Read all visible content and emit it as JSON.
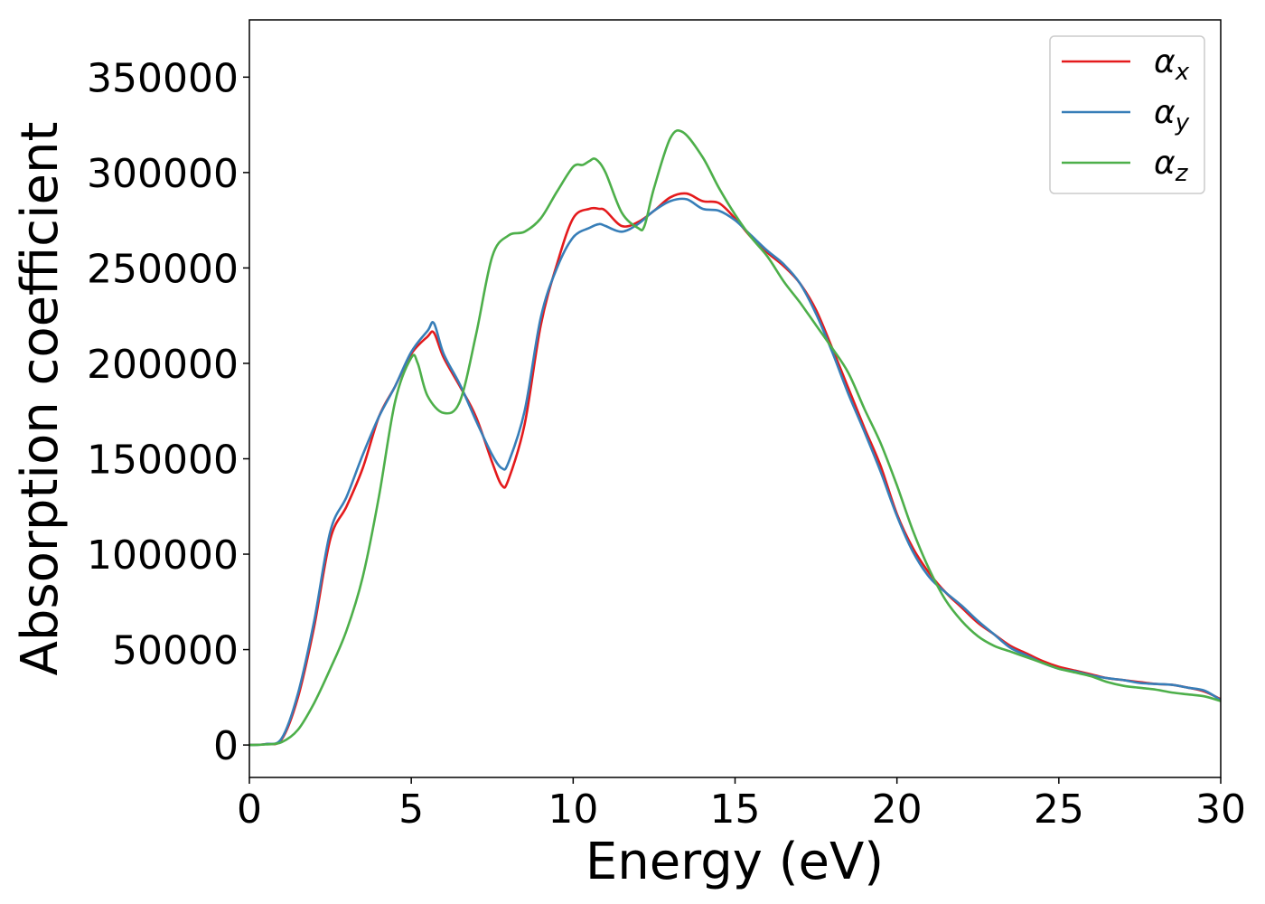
{
  "chart_data": {
    "type": "line",
    "title": "",
    "xlabel": "Energy (eV)",
    "ylabel": "Absorption coefficient",
    "xlim": [
      0,
      30
    ],
    "ylim": [
      -17000,
      380000
    ],
    "xticks": [
      0,
      5,
      10,
      15,
      20,
      25,
      30
    ],
    "xtick_labels": [
      "0",
      "5",
      "10",
      "15",
      "20",
      "25",
      "30"
    ],
    "yticks": [
      0,
      50000,
      100000,
      150000,
      200000,
      250000,
      300000,
      350000
    ],
    "ytick_labels": [
      "0",
      "50000",
      "100000",
      "150000",
      "200000",
      "250000",
      "300000",
      "350000"
    ],
    "grid": false,
    "legend_position": "top-right",
    "series": [
      {
        "name": "α_x",
        "label_main": "α",
        "label_sub": "x",
        "color": "#e41a1c",
        "x": [
          0,
          0.5,
          1.0,
          1.5,
          2.0,
          2.5,
          3.0,
          3.5,
          4.0,
          4.5,
          5.0,
          5.5,
          5.7,
          6.0,
          6.5,
          7.0,
          7.5,
          7.8,
          8.0,
          8.5,
          9.0,
          9.5,
          10.0,
          10.5,
          10.8,
          11.0,
          11.5,
          12.0,
          12.5,
          13.0,
          13.5,
          14.0,
          14.5,
          15.0,
          15.5,
          16.0,
          16.5,
          17.0,
          17.5,
          18.0,
          18.5,
          19.0,
          19.5,
          20.0,
          20.5,
          21.0,
          21.5,
          22.0,
          22.5,
          23.0,
          23.5,
          24.0,
          24.5,
          25.0,
          25.5,
          26.0,
          26.5,
          27.0,
          27.5,
          28.0,
          28.5,
          29.0,
          29.5,
          30.0
        ],
        "y": [
          0,
          500,
          3000,
          25000,
          62000,
          108000,
          125000,
          145000,
          172000,
          188000,
          205000,
          214000,
          216000,
          203000,
          188000,
          172000,
          148000,
          136000,
          139000,
          168000,
          220000,
          252000,
          276000,
          281000,
          281000,
          280000,
          272000,
          274000,
          280000,
          287000,
          289000,
          285000,
          284000,
          276000,
          266000,
          258000,
          251000,
          242000,
          228000,
          208000,
          187000,
          166000,
          146000,
          121000,
          103000,
          90000,
          80000,
          72000,
          64000,
          58000,
          52000,
          48000,
          44000,
          41000,
          39000,
          37000,
          35000,
          34000,
          33000,
          32000,
          31500,
          30000,
          28000,
          24000
        ]
      },
      {
        "name": "α_y",
        "label_main": "α",
        "label_sub": "y",
        "color": "#377eb8",
        "x": [
          0,
          0.5,
          1.0,
          1.5,
          2.0,
          2.5,
          3.0,
          3.5,
          4.0,
          4.5,
          5.0,
          5.5,
          5.7,
          6.0,
          6.5,
          7.0,
          7.5,
          7.8,
          8.0,
          8.5,
          9.0,
          9.5,
          10.0,
          10.5,
          10.8,
          11.0,
          11.5,
          12.0,
          12.5,
          13.0,
          13.5,
          14.0,
          14.5,
          15.0,
          15.5,
          16.0,
          16.5,
          17.0,
          17.5,
          18.0,
          18.5,
          19.0,
          19.5,
          20.0,
          20.5,
          21.0,
          21.5,
          22.0,
          22.5,
          23.0,
          23.5,
          24.0,
          24.5,
          25.0,
          25.5,
          26.0,
          26.5,
          27.0,
          27.5,
          28.0,
          28.5,
          29.0,
          29.5,
          30.0
        ],
        "y": [
          0,
          500,
          3500,
          27000,
          65000,
          112000,
          130000,
          152000,
          172000,
          188000,
          206000,
          217000,
          221000,
          205000,
          189000,
          170000,
          152000,
          145000,
          148000,
          175000,
          224000,
          250000,
          266000,
          271000,
          273000,
          272000,
          269000,
          273000,
          280000,
          285000,
          286000,
          281000,
          280000,
          275000,
          267000,
          259000,
          252000,
          242000,
          226000,
          206000,
          184000,
          164000,
          143000,
          120000,
          101000,
          88000,
          80000,
          73000,
          65000,
          58000,
          51000,
          47000,
          43000,
          40000,
          38500,
          36500,
          35000,
          34000,
          32500,
          32000,
          31500,
          30000,
          28500,
          23500
        ]
      },
      {
        "name": "α_z",
        "label_main": "α",
        "label_sub": "z",
        "color": "#4daf4a",
        "x": [
          0,
          0.5,
          1.0,
          1.5,
          2.0,
          2.5,
          3.0,
          3.5,
          4.0,
          4.5,
          5.0,
          5.2,
          5.5,
          6.0,
          6.5,
          7.0,
          7.5,
          8.0,
          8.5,
          9.0,
          9.5,
          10.0,
          10.3,
          10.5,
          10.7,
          11.0,
          11.5,
          12.0,
          12.2,
          12.5,
          13.0,
          13.4,
          14.0,
          14.5,
          15.0,
          15.5,
          16.0,
          16.5,
          17.0,
          17.5,
          18.0,
          18.5,
          19.0,
          19.5,
          20.0,
          20.5,
          21.0,
          21.5,
          22.0,
          22.5,
          23.0,
          23.5,
          24.0,
          24.5,
          25.0,
          25.5,
          26.0,
          26.5,
          27.0,
          27.5,
          28.0,
          28.5,
          29.0,
          29.5,
          30.0
        ],
        "y": [
          0,
          300,
          1500,
          8000,
          22000,
          40000,
          60000,
          88000,
          130000,
          180000,
          203000,
          200000,
          183000,
          174000,
          180000,
          215000,
          256000,
          267000,
          269000,
          276000,
          290000,
          303000,
          304000,
          306000,
          307000,
          300000,
          279000,
          271000,
          272000,
          292000,
          318000,
          321000,
          308000,
          292000,
          278000,
          266000,
          256000,
          243000,
          232000,
          220000,
          208000,
          195000,
          176000,
          158000,
          136000,
          112000,
          92000,
          76000,
          65000,
          57000,
          52000,
          49000,
          46000,
          43000,
          40000,
          38000,
          36000,
          33000,
          31000,
          30000,
          29000,
          27500,
          26500,
          25500,
          23000
        ]
      }
    ]
  }
}
